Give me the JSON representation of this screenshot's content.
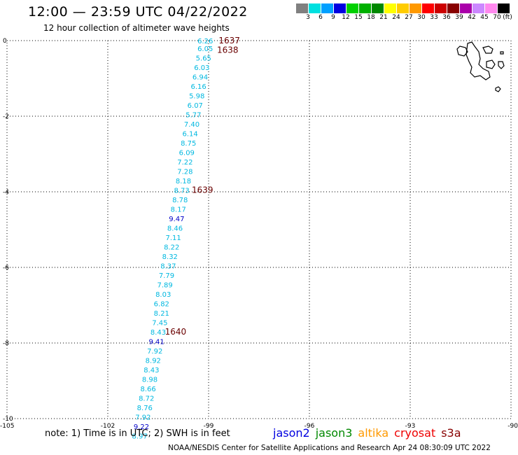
{
  "header": {
    "title": "12:00 — 23:59 UTC 04/22/2022",
    "subtitle": "12 hour collection of altimeter wave heights"
  },
  "legend": {
    "unit": "(ft)",
    "swatches": [
      {
        "label": "3",
        "color": "#808080"
      },
      {
        "label": "6",
        "color": "#00e0e0"
      },
      {
        "label": "9",
        "color": "#00a0ff"
      },
      {
        "label": "12",
        "color": "#0000e0"
      },
      {
        "label": "15",
        "color": "#00d000"
      },
      {
        "label": "18",
        "color": "#00b000"
      },
      {
        "label": "21",
        "color": "#008800"
      },
      {
        "label": "24",
        "color": "#ffff00"
      },
      {
        "label": "27",
        "color": "#ffcc00"
      },
      {
        "label": "30",
        "color": "#ff9900"
      },
      {
        "label": "33",
        "color": "#ff0000"
      },
      {
        "label": "36",
        "color": "#cc0000"
      },
      {
        "label": "39",
        "color": "#880000"
      },
      {
        "label": "42",
        "color": "#aa00aa"
      },
      {
        "label": "45",
        "color": "#cc88ff"
      },
      {
        "label": "70",
        "color": "#ff88ee"
      },
      {
        "label": "",
        "color": "#000000"
      }
    ]
  },
  "map": {
    "lon_range": [
      -105,
      -90
    ],
    "lat_range": [
      -10,
      0
    ],
    "x_ticks": [
      "-105",
      "-102",
      "-99",
      "-96",
      "-93",
      "-90"
    ],
    "y_ticks": [
      "0",
      "-2",
      "-4",
      "-6",
      "-8",
      "-10"
    ],
    "colors": {
      "cyan": "#00b8e0",
      "blue": "#0000c8",
      "time": "#6a0000"
    },
    "observations": [
      {
        "lon": -99.1,
        "lat": 0.0,
        "swh": "6.26",
        "c": "cyan"
      },
      {
        "lon": -99.1,
        "lat": -0.2,
        "swh": "6.05",
        "c": "cyan"
      },
      {
        "lon": -99.15,
        "lat": -0.45,
        "swh": "5.65",
        "c": "cyan"
      },
      {
        "lon": -99.2,
        "lat": -0.7,
        "swh": "6.03",
        "c": "cyan"
      },
      {
        "lon": -99.25,
        "lat": -0.95,
        "swh": "6.94",
        "c": "cyan"
      },
      {
        "lon": -99.3,
        "lat": -1.2,
        "swh": "6.16",
        "c": "cyan"
      },
      {
        "lon": -99.35,
        "lat": -1.45,
        "swh": "5.98",
        "c": "cyan"
      },
      {
        "lon": -99.4,
        "lat": -1.7,
        "swh": "6.07",
        "c": "cyan"
      },
      {
        "lon": -99.45,
        "lat": -1.95,
        "swh": "5.77",
        "c": "cyan"
      },
      {
        "lon": -99.5,
        "lat": -2.2,
        "swh": "7.40",
        "c": "cyan"
      },
      {
        "lon": -99.55,
        "lat": -2.45,
        "swh": "6.14",
        "c": "cyan"
      },
      {
        "lon": -99.6,
        "lat": -2.7,
        "swh": "8.75",
        "c": "cyan"
      },
      {
        "lon": -99.65,
        "lat": -2.95,
        "swh": "6.09",
        "c": "cyan"
      },
      {
        "lon": -99.7,
        "lat": -3.2,
        "swh": "7.22",
        "c": "cyan"
      },
      {
        "lon": -99.7,
        "lat": -3.45,
        "swh": "7.28",
        "c": "cyan"
      },
      {
        "lon": -99.75,
        "lat": -3.7,
        "swh": "8.18",
        "c": "cyan"
      },
      {
        "lon": -99.8,
        "lat": -3.95,
        "swh": "8.73",
        "c": "cyan"
      },
      {
        "lon": -99.85,
        "lat": -4.2,
        "swh": "8.78",
        "c": "cyan"
      },
      {
        "lon": -99.9,
        "lat": -4.45,
        "swh": "8.17",
        "c": "cyan"
      },
      {
        "lon": -99.95,
        "lat": -4.7,
        "swh": "9.47",
        "c": "blue"
      },
      {
        "lon": -100.0,
        "lat": -4.95,
        "swh": "8.46",
        "c": "cyan"
      },
      {
        "lon": -100.05,
        "lat": -5.2,
        "swh": "7.11",
        "c": "cyan"
      },
      {
        "lon": -100.1,
        "lat": -5.45,
        "swh": "8.22",
        "c": "cyan"
      },
      {
        "lon": -100.15,
        "lat": -5.7,
        "swh": "8.32",
        "c": "cyan"
      },
      {
        "lon": -100.2,
        "lat": -5.95,
        "swh": "8.37",
        "c": "cyan"
      },
      {
        "lon": -100.25,
        "lat": -6.2,
        "swh": "7.79",
        "c": "cyan"
      },
      {
        "lon": -100.3,
        "lat": -6.45,
        "swh": "7.89",
        "c": "cyan"
      },
      {
        "lon": -100.35,
        "lat": -6.7,
        "swh": "8.03",
        "c": "cyan"
      },
      {
        "lon": -100.4,
        "lat": -6.95,
        "swh": "6.82",
        "c": "cyan"
      },
      {
        "lon": -100.4,
        "lat": -7.2,
        "swh": "8.21",
        "c": "cyan"
      },
      {
        "lon": -100.45,
        "lat": -7.45,
        "swh": "7.45",
        "c": "cyan"
      },
      {
        "lon": -100.5,
        "lat": -7.7,
        "swh": "8.43",
        "c": "cyan"
      },
      {
        "lon": -100.55,
        "lat": -7.95,
        "swh": "9.41",
        "c": "blue"
      },
      {
        "lon": -100.6,
        "lat": -8.2,
        "swh": "7.92",
        "c": "cyan"
      },
      {
        "lon": -100.65,
        "lat": -8.45,
        "swh": "8.92",
        "c": "cyan"
      },
      {
        "lon": -100.7,
        "lat": -8.7,
        "swh": "8.43",
        "c": "cyan"
      },
      {
        "lon": -100.75,
        "lat": -8.95,
        "swh": "8.98",
        "c": "cyan"
      },
      {
        "lon": -100.8,
        "lat": -9.2,
        "swh": "8.66",
        "c": "cyan"
      },
      {
        "lon": -100.85,
        "lat": -9.45,
        "swh": "8.72",
        "c": "cyan"
      },
      {
        "lon": -100.9,
        "lat": -9.7,
        "swh": "8.76",
        "c": "cyan"
      },
      {
        "lon": -100.95,
        "lat": -9.95,
        "swh": "7.92",
        "c": "cyan"
      },
      {
        "lon": -101.0,
        "lat": -10.2,
        "swh": "9.22",
        "c": "blue"
      },
      {
        "lon": -101.05,
        "lat": -10.45,
        "swh": "8.97",
        "c": "cyan"
      }
    ],
    "time_labels": [
      {
        "text": "1637",
        "lon": -98.7,
        "lat": 0.0
      },
      {
        "text": "1638",
        "lon": -98.75,
        "lat": -0.25
      },
      {
        "text": "1639",
        "lon": -99.5,
        "lat": -3.95
      },
      {
        "text": "1640",
        "lon": -100.3,
        "lat": -7.7
      }
    ]
  },
  "footer": {
    "note": "note: 1) Time is in UTC; 2) SWH is in feet",
    "satellites": [
      {
        "name": "jason2",
        "color": "#0000e0"
      },
      {
        "name": "jason3",
        "color": "#008800"
      },
      {
        "name": "altika",
        "color": "#ff9900"
      },
      {
        "name": "cryosat",
        "color": "#ee0000"
      },
      {
        "name": "s3a",
        "color": "#880000"
      }
    ],
    "credit": "NOAA/NESDIS Center for Satellite Applications and Research   Apr 24 08:30:09 UTC 2022"
  }
}
